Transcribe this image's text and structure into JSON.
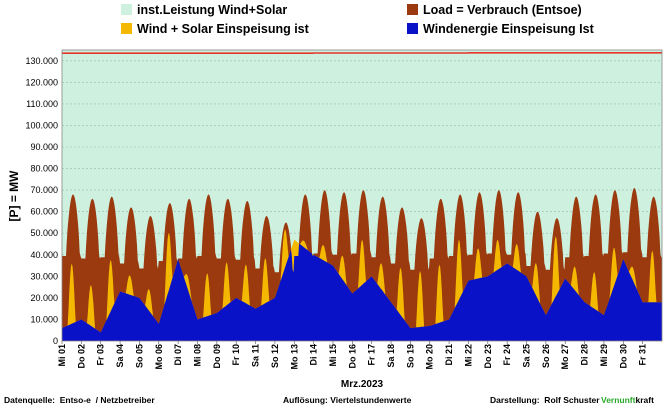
{
  "chart_data": {
    "type": "area",
    "title": "",
    "xlabel": "Mrz.2023",
    "ylabel": "[P] = MW",
    "ylim": [
      0,
      135000
    ],
    "yticks": [
      0,
      10000,
      20000,
      30000,
      40000,
      50000,
      60000,
      70000,
      80000,
      90000,
      100000,
      110000,
      120000,
      130000
    ],
    "ytick_labels": [
      "0",
      "10.000",
      "20.000",
      "30.000",
      "40.000",
      "50.000",
      "60.000",
      "70.000",
      "80.000",
      "90.000",
      "100.000",
      "110.000",
      "120.000",
      "130.000"
    ],
    "grid": true,
    "legend_position": "top",
    "x_categories": [
      "Mi 01",
      "Do 02",
      "Fr 03",
      "Sa 04",
      "So 05",
      "Mo 06",
      "Di 07",
      "Mi 08",
      "Do 09",
      "Fr 10",
      "Sa 11",
      "So 12",
      "Mo 13",
      "Di 14",
      "Mi 15",
      "Do 16",
      "Fr 17",
      "Sa 18",
      "So 19",
      "Mo 20",
      "Di 21",
      "Mi 22",
      "Do 23",
      "Fr 24",
      "Sa 25",
      "So 26",
      "Mo 27",
      "Di 28",
      "Mi 29",
      "Do 30",
      "Fr 31"
    ],
    "series": [
      {
        "name": "inst.Leistung Wind+Solar",
        "color": "#cdf0df",
        "values": [
          133500,
          133500,
          133500,
          133500,
          133500,
          133500,
          133500,
          133500,
          133500,
          133500,
          133500,
          133500,
          133500,
          133600,
          133600,
          133600,
          133600,
          133600,
          133600,
          133600,
          133600,
          133700,
          133700,
          133700,
          133700,
          133700,
          133700,
          133700,
          133700,
          133700,
          133700
        ]
      },
      {
        "name": "Load = Verbrauch (Entsoe)",
        "color": "#9b3a0e",
        "values": [
          68000,
          66000,
          67000,
          62000,
          58000,
          64000,
          66000,
          68000,
          66000,
          65000,
          58000,
          55000,
          68000,
          70000,
          69000,
          70000,
          67000,
          62000,
          57000,
          66000,
          68000,
          69000,
          70000,
          69000,
          60000,
          57000,
          67000,
          68000,
          70000,
          71000,
          67000
        ]
      },
      {
        "name": "Wind + Solar Einspeisung ist",
        "color": "#f5b800",
        "values": [
          34000,
          29000,
          28000,
          32000,
          30000,
          35000,
          44000,
          30000,
          33000,
          38000,
          36000,
          38000,
          50000,
          47000,
          46000,
          43000,
          42000,
          40000,
          32000,
          34000,
          38000,
          42000,
          44000,
          48000,
          45000,
          40000,
          40000,
          35000,
          30000,
          44000,
          42000
        ]
      },
      {
        "name": "Windenergie Einspeisung Ist",
        "color": "#0a12c8",
        "values": [
          6000,
          10000,
          4000,
          23000,
          20000,
          8000,
          38000,
          10000,
          13000,
          20000,
          15000,
          20000,
          47000,
          40000,
          35000,
          22000,
          30000,
          18000,
          6000,
          7000,
          10000,
          28000,
          30000,
          36000,
          30000,
          12000,
          29000,
          18000,
          12000,
          38000,
          18000
        ]
      }
    ]
  },
  "footer": {
    "source": "Datenquelle:  Entso-e  / Netzbetreiber",
    "resolution": "Auflösung: Viertelstundenwerte",
    "author": "Darstellung:  Rolf Schuster",
    "brand_green": "Vernunft",
    "brand_black": "kraft"
  },
  "colors": {
    "plot_background": "#cdf0df",
    "load": "#9b3a0e",
    "solar_wind": "#f5b800",
    "wind": "#0a12c8",
    "capacity_line": "#e8332a",
    "brand_green": "#2aa82a"
  }
}
